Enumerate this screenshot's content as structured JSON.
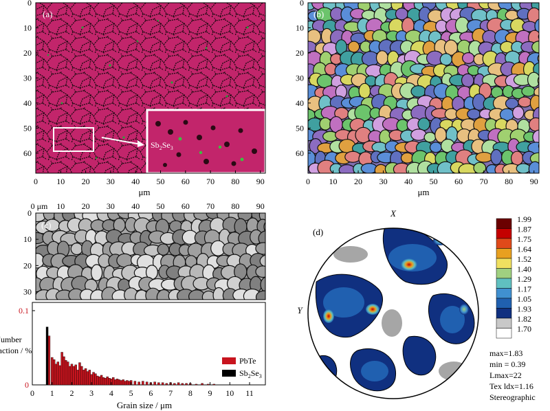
{
  "panel_a": {
    "label": "(a)",
    "y_ticks": [
      "0",
      "10",
      "20",
      "30",
      "40",
      "50",
      "60"
    ],
    "x_ticks": [
      "0",
      "10",
      "20",
      "30",
      "40",
      "50",
      "60",
      "70",
      "80",
      "90"
    ],
    "x_unit": "μm",
    "inset_label_main": "Sb",
    "inset_sub1": "2",
    "inset_mid": "Se",
    "inset_sub2": "3",
    "matrix_color": "#c2256b",
    "precipitate_color": "#2aa13a"
  },
  "panel_b": {
    "label": "(b)",
    "y_ticks": [
      "0",
      "10",
      "20",
      "30",
      "40",
      "50",
      "60"
    ],
    "x_ticks": [
      "0",
      "10",
      "20",
      "30",
      "40",
      "50",
      "60",
      "70",
      "80",
      "90"
    ],
    "x_unit": "μm"
  },
  "panel_c": {
    "label": "(c)",
    "top_ticks": [
      "0 μm",
      "10",
      "20",
      "30",
      "40",
      "50",
      "60",
      "70",
      "80",
      "90"
    ],
    "y_ticks": [
      "0",
      "10",
      "20",
      "30"
    ]
  },
  "hist": {
    "ylabel_line1": "Number",
    "ylabel_line2": "fraction / %",
    "xlabel": "Grain size / μm",
    "y_ticks": [
      "0.1",
      "0"
    ],
    "x_ticks": [
      "0",
      "1",
      "2",
      "3",
      "4",
      "5",
      "6",
      "7",
      "8",
      "9",
      "10",
      "11"
    ],
    "legend_pbte": "PbTe",
    "legend_sb_main": "Sb",
    "legend_sb_sub1": "2",
    "legend_sb_mid": "Se",
    "legend_sb_sub2": "3",
    "color_pbte": "#c8141e",
    "color_sb": "#000000"
  },
  "panel_d": {
    "label": "(d)",
    "x_axis": "X",
    "y_axis": "Y",
    "colorbar_levels": [
      "1.99",
      "1.87",
      "1.75",
      "1.64",
      "1.52",
      "1.40",
      "1.29",
      "1.17",
      "1.05",
      "1.93",
      "1.82",
      "1.70"
    ],
    "colorbar_colors": [
      "#6b0000",
      "#c40000",
      "#e04a1a",
      "#e8a020",
      "#f0e060",
      "#a0d080",
      "#60c0c0",
      "#4090d0",
      "#2060b0",
      "#103080",
      "#c8c8c8",
      "#ffffff"
    ],
    "stats": [
      "max=1.83",
      "min = 0.39",
      "Lmax=22",
      "Tex ldx=1.16",
      "Stereographic"
    ]
  },
  "chart_data": {
    "type": "bar",
    "title": "",
    "xlabel": "Grain size / μm",
    "ylabel": "Number fraction / %",
    "xlim": [
      0,
      11.8
    ],
    "ylim": [
      0,
      0.1
    ],
    "series": [
      {
        "name": "PbTe",
        "x": [
          0.85,
          1.0,
          1.1,
          1.2,
          1.3,
          1.4,
          1.5,
          1.6,
          1.7,
          1.8,
          1.9,
          2.0,
          2.1,
          2.2,
          2.3,
          2.4,
          2.5,
          2.6,
          2.7,
          2.8,
          2.9,
          3.0,
          3.1,
          3.2,
          3.3,
          3.4,
          3.5,
          3.6,
          3.7,
          3.8,
          3.9,
          4.0,
          4.1,
          4.2,
          4.3,
          4.4,
          4.5,
          4.6,
          4.7,
          4.8,
          4.9,
          5.0,
          5.2,
          5.4,
          5.6,
          5.8,
          6.0,
          6.2,
          6.4,
          6.6,
          6.8,
          7.0,
          7.2,
          7.4,
          7.6,
          7.8,
          8.0,
          8.3,
          8.6,
          8.9,
          9.2
        ],
        "y": [
          0.066,
          0.037,
          0.034,
          0.028,
          0.031,
          0.026,
          0.044,
          0.038,
          0.033,
          0.031,
          0.025,
          0.028,
          0.025,
          0.027,
          0.02,
          0.03,
          0.025,
          0.02,
          0.022,
          0.018,
          0.02,
          0.014,
          0.017,
          0.015,
          0.012,
          0.011,
          0.013,
          0.01,
          0.009,
          0.011,
          0.009,
          0.008,
          0.01,
          0.007,
          0.008,
          0.007,
          0.006,
          0.007,
          0.005,
          0.006,
          0.005,
          0.006,
          0.005,
          0.004,
          0.005,
          0.004,
          0.003,
          0.004,
          0.003,
          0.003,
          0.002,
          0.003,
          0.002,
          0.003,
          0.002,
          0.002,
          0.002,
          0.001,
          0.002,
          0.001,
          0.001
        ]
      },
      {
        "name": "Sb2Se3",
        "x": [
          0.75
        ],
        "y": [
          0.078
        ]
      }
    ]
  }
}
